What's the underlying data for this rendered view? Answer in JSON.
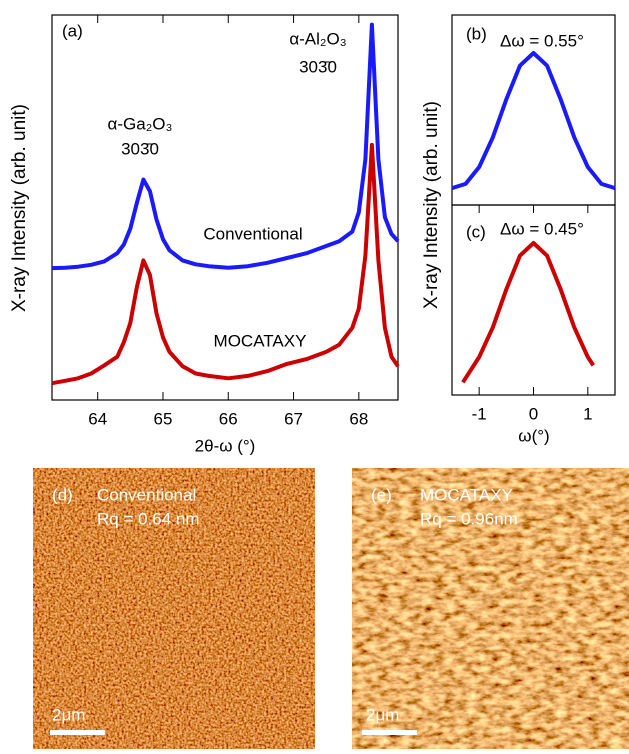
{
  "chart_data": [
    {
      "type": "line",
      "xlabel": "2θ-ω (°)",
      "ylabel": "X-ray Intensity (arb. unit)",
      "annotations": [
        "(a)",
        "α-Ga₂O₃",
        "303̄0",
        "α-Al₂O₃",
        "303̄0"
      ],
      "x": [
        63.3,
        63.5,
        63.7,
        63.9,
        64.1,
        64.3,
        64.4,
        64.5,
        64.6,
        64.7,
        64.8,
        64.9,
        65.0,
        65.1,
        65.3,
        65.5,
        65.7,
        66.0,
        66.3,
        66.6,
        66.9,
        67.2,
        67.5,
        67.7,
        67.9,
        68.0,
        68.1,
        68.2,
        68.3,
        68.4,
        68.5,
        68.6
      ],
      "series": [
        {
          "name": "Conventional",
          "color": "#1a1aff",
          "values": [
            2.74,
            2.75,
            2.77,
            2.81,
            2.88,
            3.05,
            3.23,
            3.56,
            4.1,
            4.58,
            4.34,
            3.75,
            3.34,
            3.11,
            2.9,
            2.82,
            2.78,
            2.75,
            2.78,
            2.85,
            2.95,
            3.05,
            3.2,
            3.3,
            3.5,
            3.9,
            5.0,
            7.8,
            5.0,
            3.8,
            3.45,
            3.3
          ]
        },
        {
          "name": "MOCATAXY",
          "color": "#cc0000",
          "values": [
            0.35,
            0.4,
            0.45,
            0.55,
            0.72,
            0.9,
            1.2,
            1.6,
            2.35,
            2.9,
            2.6,
            1.8,
            1.3,
            1.0,
            0.7,
            0.55,
            0.5,
            0.45,
            0.5,
            0.6,
            0.75,
            0.85,
            1.0,
            1.15,
            1.5,
            1.9,
            3.0,
            5.3,
            2.9,
            1.5,
            0.9,
            0.7
          ]
        }
      ],
      "xlim": [
        63.3,
        68.6
      ],
      "xticks": [
        64,
        65,
        66,
        67,
        68
      ],
      "ylim": [
        0,
        8
      ]
    },
    {
      "type": "line",
      "ylabel": "X-ray Intensity (arb. unit)",
      "annotations": [
        "(b)",
        "Δω = 0.55°"
      ],
      "x": [
        -1.5,
        -1.25,
        -1,
        -0.75,
        -0.5,
        -0.25,
        0,
        0.25,
        0.5,
        0.75,
        1,
        1.25,
        1.5
      ],
      "series": [
        {
          "color": "#1a1aff",
          "values": [
            0.4,
            0.5,
            0.9,
            1.6,
            2.5,
            3.3,
            3.6,
            3.3,
            2.5,
            1.6,
            0.9,
            0.5,
            0.4
          ]
        }
      ],
      "xlim": [
        -1.5,
        1.5
      ],
      "ylim": [
        0,
        4.5
      ]
    },
    {
      "type": "line",
      "xlabel": "ω(°)",
      "annotations": [
        "(c)",
        "Δω = 0.45°"
      ],
      "x": [
        -1.3,
        -1.0,
        -0.75,
        -0.5,
        -0.25,
        0,
        0.25,
        0.5,
        0.75,
        1.0,
        1.1
      ],
      "series": [
        {
          "color": "#cc0000",
          "values": [
            0.3,
            0.9,
            1.6,
            2.5,
            3.3,
            3.6,
            3.3,
            2.5,
            1.6,
            0.9,
            0.7
          ]
        }
      ],
      "xlim": [
        -1.5,
        1.5
      ],
      "xticks": [
        -1,
        0,
        1
      ],
      "ylim": [
        0,
        4.5
      ]
    }
  ],
  "afm_images": [
    {
      "panel": "(d)",
      "sample": "Conventional",
      "roughness": "Rq = 0.64 nm",
      "scale_bar": "2μm"
    },
    {
      "panel": "(e)",
      "sample": "MOCATAXY",
      "roughness": "Rq = 0.96nm",
      "scale_bar": "2μm"
    }
  ]
}
